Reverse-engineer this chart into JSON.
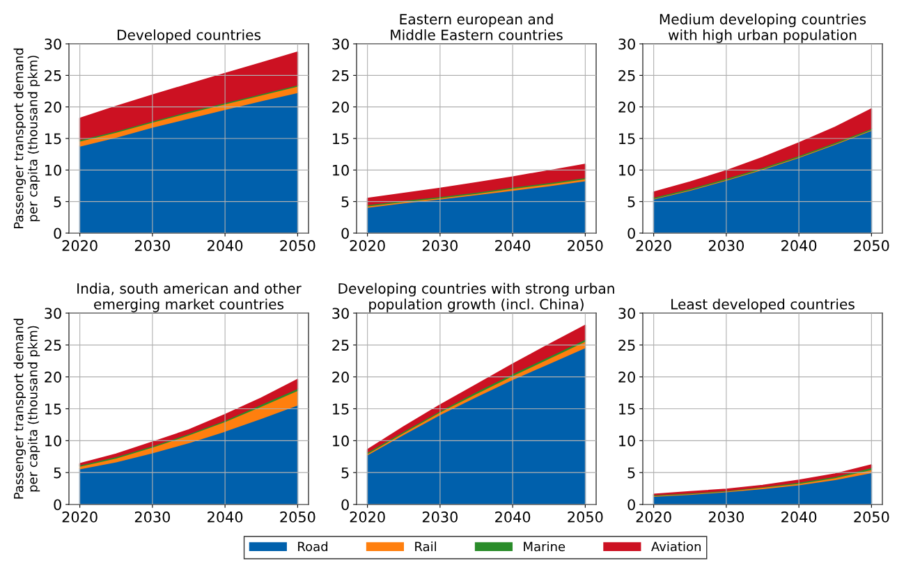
{
  "chart_data": [
    {
      "type": "area",
      "stacked": true,
      "title": "Developed countries",
      "ylabel": "Passenger transport demand\nper capita (thousand pkm)",
      "x": [
        2020,
        2025,
        2030,
        2035,
        2040,
        2045,
        2050
      ],
      "xlim": [
        2018.5,
        2051.5
      ],
      "xticks": [
        2020,
        2030,
        2040,
        2050
      ],
      "ylim": [
        0,
        30
      ],
      "yticks": [
        0,
        5,
        10,
        15,
        20,
        25,
        30
      ],
      "grid": true,
      "legend": "bottom",
      "series": [
        {
          "name": "Road",
          "color": "#0060ac",
          "values": [
            13.8,
            15.2,
            16.8,
            18.2,
            19.6,
            21.0,
            22.3
          ]
        },
        {
          "name": "Rail",
          "color": "#ff7f0e",
          "values": [
            0.8,
            0.8,
            0.8,
            0.9,
            0.9,
            0.9,
            1.0
          ]
        },
        {
          "name": "Marine",
          "color": "#2a8c2a",
          "values": [
            0.2,
            0.2,
            0.2,
            0.2,
            0.2,
            0.2,
            0.2
          ]
        },
        {
          "name": "Aviation",
          "color": "#cc1122",
          "values": [
            3.4,
            3.9,
            4.1,
            4.3,
            4.6,
            4.9,
            5.2
          ]
        }
      ]
    },
    {
      "type": "area",
      "stacked": true,
      "title": "Eastern european and\nMiddle Eastern countries",
      "x": [
        2020,
        2025,
        2030,
        2035,
        2040,
        2045,
        2050
      ],
      "xlim": [
        2018.5,
        2051.5
      ],
      "xticks": [
        2020,
        2030,
        2040,
        2050
      ],
      "ylim": [
        0,
        30
      ],
      "yticks": [
        0,
        5,
        10,
        15,
        20,
        25,
        30
      ],
      "grid": true,
      "series": [
        {
          "color": "#0060ac",
          "values": [
            4.1,
            4.8,
            5.4,
            6.1,
            6.8,
            7.5,
            8.3
          ]
        },
        {
          "color": "#ff7f0e",
          "values": [
            0.2,
            0.2,
            0.2,
            0.2,
            0.3,
            0.3,
            0.3
          ]
        },
        {
          "color": "#2a8c2a",
          "values": [
            0.2,
            0.2,
            0.2,
            0.2,
            0.2,
            0.2,
            0.2
          ]
        },
        {
          "color": "#cc1122",
          "values": [
            1.0,
            1.1,
            1.3,
            1.5,
            1.6,
            1.9,
            2.1
          ]
        }
      ]
    },
    {
      "type": "area",
      "stacked": true,
      "title": "Medium developing countries\nwith high urban population",
      "x": [
        2020,
        2025,
        2030,
        2035,
        2040,
        2045,
        2050
      ],
      "xlim": [
        2018.5,
        2051.5
      ],
      "xticks": [
        2020,
        2030,
        2040,
        2050
      ],
      "ylim": [
        0,
        30
      ],
      "yticks": [
        0,
        5,
        10,
        15,
        20,
        25,
        30
      ],
      "grid": true,
      "series": [
        {
          "color": "#0060ac",
          "values": [
            5.4,
            6.8,
            8.4,
            10.1,
            12.0,
            14.1,
            16.3
          ]
        },
        {
          "color": "#ff7f0e",
          "values": [
            0.1,
            0.1,
            0.1,
            0.1,
            0.1,
            0.1,
            0.1
          ]
        },
        {
          "color": "#2a8c2a",
          "values": [
            0.2,
            0.2,
            0.2,
            0.2,
            0.2,
            0.2,
            0.2
          ]
        },
        {
          "color": "#cc1122",
          "values": [
            0.8,
            1.0,
            1.2,
            1.6,
            2.0,
            2.4,
            3.1
          ]
        }
      ]
    },
    {
      "type": "area",
      "stacked": true,
      "title": "India, south american and other\nemerging market countries",
      "ylabel": "Passenger transport demand\nper capita (thousand pkm)",
      "x": [
        2020,
        2025,
        2030,
        2035,
        2040,
        2045,
        2050
      ],
      "xlim": [
        2018.5,
        2051.5
      ],
      "xticks": [
        2020,
        2030,
        2040,
        2050
      ],
      "ylim": [
        0,
        30
      ],
      "yticks": [
        0,
        5,
        10,
        15,
        20,
        25,
        30
      ],
      "grid": true,
      "series": [
        {
          "color": "#0060ac",
          "values": [
            5.6,
            6.7,
            8.1,
            9.7,
            11.5,
            13.5,
            15.6
          ]
        },
        {
          "color": "#ff7f0e",
          "values": [
            0.4,
            0.6,
            0.9,
            1.2,
            1.5,
            1.9,
            2.3
          ]
        },
        {
          "color": "#2a8c2a",
          "values": [
            0.2,
            0.2,
            0.2,
            0.2,
            0.2,
            0.3,
            0.3
          ]
        },
        {
          "color": "#cc1122",
          "values": [
            0.2,
            0.4,
            0.6,
            0.6,
            0.9,
            1.0,
            1.4
          ]
        }
      ]
    },
    {
      "type": "area",
      "stacked": true,
      "title": "Developing countries with strong urban\npopulation growth (incl. China)",
      "x": [
        2020,
        2025,
        2030,
        2035,
        2040,
        2045,
        2050
      ],
      "xlim": [
        2018.5,
        2051.5
      ],
      "xticks": [
        2020,
        2030,
        2040,
        2050
      ],
      "ylim": [
        0,
        30
      ],
      "yticks": [
        0,
        5,
        10,
        15,
        20,
        25,
        30
      ],
      "grid": true,
      "series": [
        {
          "color": "#0060ac",
          "values": [
            7.8,
            11.0,
            14.1,
            16.9,
            19.6,
            22.1,
            24.6
          ]
        },
        {
          "color": "#ff7f0e",
          "values": [
            0.2,
            0.3,
            0.4,
            0.5,
            0.6,
            0.8,
            1.0
          ]
        },
        {
          "color": "#2a8c2a",
          "values": [
            0.2,
            0.2,
            0.2,
            0.3,
            0.3,
            0.3,
            0.3
          ]
        },
        {
          "color": "#cc1122",
          "values": [
            0.4,
            0.7,
            0.9,
            1.1,
            1.5,
            1.9,
            2.2
          ]
        }
      ]
    },
    {
      "type": "area",
      "stacked": true,
      "title": "Least developed countries",
      "x": [
        2020,
        2025,
        2030,
        2035,
        2040,
        2045,
        2050
      ],
      "xlim": [
        2018.5,
        2051.5
      ],
      "xticks": [
        2020,
        2030,
        2040,
        2050
      ],
      "ylim": [
        0,
        30
      ],
      "yticks": [
        0,
        5,
        10,
        15,
        20,
        25,
        30
      ],
      "grid": true,
      "series": [
        {
          "color": "#0060ac",
          "values": [
            1.3,
            1.6,
            2.0,
            2.5,
            3.1,
            3.9,
            5.0
          ]
        },
        {
          "color": "#ff7f0e",
          "values": [
            0.1,
            0.1,
            0.1,
            0.2,
            0.2,
            0.3,
            0.5
          ]
        },
        {
          "color": "#2a8c2a",
          "values": [
            0.1,
            0.1,
            0.1,
            0.1,
            0.2,
            0.2,
            0.3
          ]
        },
        {
          "color": "#cc1122",
          "values": [
            0.1,
            0.2,
            0.2,
            0.2,
            0.3,
            0.4,
            0.4
          ]
        }
      ]
    }
  ]
}
